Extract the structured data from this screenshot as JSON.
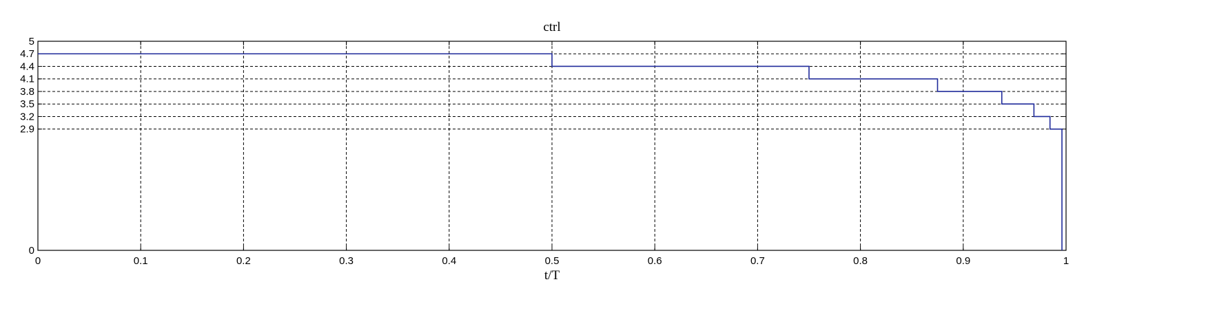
{
  "chart_data": {
    "type": "line",
    "title": "ctrl",
    "xlabel": "t/T",
    "ylabel": "",
    "xlim": [
      0,
      1
    ],
    "ylim": [
      0,
      5
    ],
    "grid": true,
    "step": true,
    "x_ticks": [
      0,
      0.1,
      0.2,
      0.3,
      0.4,
      0.5,
      0.6,
      0.7,
      0.8,
      0.9,
      1
    ],
    "x_tick_labels": [
      "0",
      "0.1",
      "0.2",
      "0.3",
      "0.4",
      "0.5",
      "0.6",
      "0.7",
      "0.8",
      "0.9",
      "1"
    ],
    "y_ticks": [
      0,
      2.9,
      3.2,
      3.5,
      3.8,
      4.1,
      4.4,
      4.7,
      5
    ],
    "y_tick_labels": [
      "0",
      "2.9",
      "3.2",
      "3.5",
      "3.8",
      "4.1",
      "4.4",
      "4.7",
      "5"
    ],
    "series": [
      {
        "color": "#1f2a9a",
        "x": [
          0,
          0.5,
          0.5,
          0.75,
          0.75,
          0.875,
          0.875,
          0.9375,
          0.9375,
          0.96875,
          0.96875,
          0.984375,
          0.984375,
          0.996,
          0.996
        ],
        "y": [
          4.7,
          4.7,
          4.4,
          4.4,
          4.1,
          4.1,
          3.8,
          3.8,
          3.5,
          3.5,
          3.2,
          3.2,
          2.9,
          2.9,
          0
        ]
      }
    ]
  }
}
